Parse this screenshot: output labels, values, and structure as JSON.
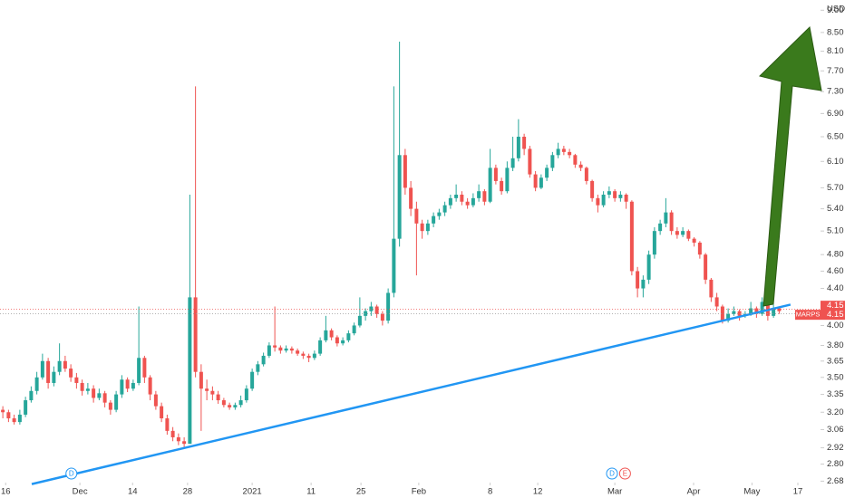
{
  "chart_data": {
    "type": "candlestick",
    "symbol": "MARPS",
    "currency": "USD",
    "log_scale": true,
    "up_color": "#26a69a",
    "down_color": "#ef5350",
    "xlim": [
      -0.5,
      144.3
    ],
    "ylim": [
      2.67,
      9.24
    ],
    "yticks": [
      {
        "value": 2.68,
        "label": "2.68"
      },
      {
        "value": 2.8,
        "label": "2.80"
      },
      {
        "value": 2.92,
        "label": "2.92"
      },
      {
        "value": 3.06,
        "label": "3.06"
      },
      {
        "value": 3.2,
        "label": "3.20"
      },
      {
        "value": 3.35,
        "label": "3.35"
      },
      {
        "value": 3.5,
        "label": "3.50"
      },
      {
        "value": 3.65,
        "label": "3.65"
      },
      {
        "value": 3.8,
        "label": "3.80"
      },
      {
        "value": 4,
        "label": "4.00"
      },
      {
        "value": 4.4,
        "label": "4.40"
      },
      {
        "value": 4.6,
        "label": "4.60"
      },
      {
        "value": 4.8,
        "label": "4.80"
      },
      {
        "value": 5.1,
        "label": "5.10"
      },
      {
        "value": 5.4,
        "label": "5.40"
      },
      {
        "value": 5.7,
        "label": "5.70"
      },
      {
        "value": 6.1,
        "label": "6.10"
      },
      {
        "value": 6.5,
        "label": "6.50"
      },
      {
        "value": 6.9,
        "label": "6.90"
      },
      {
        "value": 7.3,
        "label": "7.30"
      },
      {
        "value": 7.7,
        "label": "7.70"
      },
      {
        "value": 8.1,
        "label": "8.10"
      },
      {
        "value": 8.5,
        "label": "8.50"
      },
      {
        "value": 9,
        "label": "9.00"
      }
    ],
    "xticks": [
      {
        "value": 0.5,
        "label": "16"
      },
      {
        "value": 13.6,
        "label": "Dec"
      },
      {
        "value": 22.9,
        "label": "14"
      },
      {
        "value": 32.6,
        "label": "28"
      },
      {
        "value": 44,
        "label": "2021"
      },
      {
        "value": 54.4,
        "label": "11"
      },
      {
        "value": 63.2,
        "label": "25"
      },
      {
        "value": 73.4,
        "label": "Feb"
      },
      {
        "value": 86,
        "label": "8"
      },
      {
        "value": 94.4,
        "label": "12"
      },
      {
        "value": 108,
        "label": "Mar"
      },
      {
        "value": 121.9,
        "label": "Apr"
      },
      {
        "value": 132.2,
        "label": "May"
      },
      {
        "value": 140.3,
        "label": "17"
      }
    ],
    "last_price": {
      "value": 4.15,
      "label": "4.15"
    },
    "trendline": {
      "x": [
        5.1,
        139
      ],
      "y": [
        2.66,
        4.22
      ],
      "color": "#2196f3"
    },
    "events": [
      {
        "label": "D",
        "x": 12.1,
        "color": "#2196f3"
      },
      {
        "label": "D",
        "x": 107.5,
        "color": "#2196f3"
      },
      {
        "label": "E",
        "x": 109.8,
        "color": "#ef5350"
      }
    ],
    "ohlc": [
      [
        3.22,
        3.25,
        3.15,
        3.2
      ],
      [
        3.2,
        3.22,
        3.12,
        3.15
      ],
      [
        3.15,
        3.18,
        3.1,
        3.12
      ],
      [
        3.12,
        3.22,
        3.1,
        3.18
      ],
      [
        3.18,
        3.33,
        3.16,
        3.3
      ],
      [
        3.3,
        3.42,
        3.28,
        3.38
      ],
      [
        3.38,
        3.55,
        3.35,
        3.5
      ],
      [
        3.5,
        3.72,
        3.48,
        3.65
      ],
      [
        3.65,
        3.68,
        3.4,
        3.45
      ],
      [
        3.45,
        3.6,
        3.42,
        3.55
      ],
      [
        3.55,
        3.82,
        3.52,
        3.65
      ],
      [
        3.65,
        3.7,
        3.55,
        3.58
      ],
      [
        3.58,
        3.62,
        3.46,
        3.5
      ],
      [
        3.5,
        3.54,
        3.4,
        3.45
      ],
      [
        3.45,
        3.48,
        3.34,
        3.38
      ],
      [
        3.38,
        3.45,
        3.35,
        3.4
      ],
      [
        3.4,
        3.43,
        3.28,
        3.32
      ],
      [
        3.32,
        3.4,
        3.3,
        3.36
      ],
      [
        3.36,
        3.38,
        3.24,
        3.28
      ],
      [
        3.28,
        3.3,
        3.18,
        3.22
      ],
      [
        3.22,
        3.38,
        3.2,
        3.35
      ],
      [
        3.35,
        3.52,
        3.32,
        3.48
      ],
      [
        3.48,
        3.5,
        3.37,
        3.4
      ],
      [
        3.4,
        3.48,
        3.38,
        3.45
      ],
      [
        3.45,
        4.2,
        3.43,
        3.68
      ],
      [
        3.68,
        3.7,
        3.45,
        3.5
      ],
      [
        3.5,
        3.52,
        3.3,
        3.35
      ],
      [
        3.35,
        3.38,
        3.22,
        3.25
      ],
      [
        3.25,
        3.28,
        3.12,
        3.15
      ],
      [
        3.15,
        3.18,
        3.02,
        3.05
      ],
      [
        3.05,
        3.08,
        2.97,
        3
      ],
      [
        3,
        3.03,
        2.94,
        2.97
      ],
      [
        2.97,
        3,
        2.92,
        2.95
      ],
      [
        2.95,
        5.6,
        2.95,
        4.3
      ],
      [
        4.3,
        7.4,
        3.5,
        3.55
      ],
      [
        3.55,
        3.62,
        3.05,
        3.4
      ],
      [
        3.4,
        3.48,
        3.3,
        3.38
      ],
      [
        3.38,
        3.42,
        3.3,
        3.35
      ],
      [
        3.35,
        3.38,
        3.27,
        3.3
      ],
      [
        3.3,
        3.32,
        3.24,
        3.26
      ],
      [
        3.26,
        3.28,
        3.22,
        3.24
      ],
      [
        3.24,
        3.28,
        3.22,
        3.26
      ],
      [
        3.26,
        3.34,
        3.24,
        3.3
      ],
      [
        3.3,
        3.43,
        3.28,
        3.4
      ],
      [
        3.4,
        3.58,
        3.38,
        3.55
      ],
      [
        3.55,
        3.65,
        3.52,
        3.62
      ],
      [
        3.62,
        3.73,
        3.6,
        3.7
      ],
      [
        3.7,
        3.83,
        3.68,
        3.8
      ],
      [
        3.8,
        4.2,
        3.74,
        3.78
      ],
      [
        3.78,
        3.8,
        3.72,
        3.75
      ],
      [
        3.75,
        3.8,
        3.73,
        3.77
      ],
      [
        3.77,
        3.79,
        3.72,
        3.75
      ],
      [
        3.75,
        3.77,
        3.7,
        3.72
      ],
      [
        3.72,
        3.74,
        3.67,
        3.7
      ],
      [
        3.7,
        3.72,
        3.64,
        3.68
      ],
      [
        3.68,
        3.75,
        3.66,
        3.72
      ],
      [
        3.72,
        3.88,
        3.7,
        3.85
      ],
      [
        3.85,
        4.1,
        3.83,
        3.95
      ],
      [
        3.95,
        3.97,
        3.85,
        3.88
      ],
      [
        3.88,
        3.9,
        3.79,
        3.82
      ],
      [
        3.82,
        3.88,
        3.8,
        3.85
      ],
      [
        3.85,
        3.95,
        3.83,
        3.92
      ],
      [
        3.92,
        4.03,
        3.9,
        4
      ],
      [
        4,
        4.3,
        3.98,
        4.1
      ],
      [
        4.1,
        4.18,
        4.05,
        4.15
      ],
      [
        4.15,
        4.25,
        4.1,
        4.2
      ],
      [
        4.2,
        4.22,
        4.08,
        4.12
      ],
      [
        4.12,
        4.15,
        4,
        4.05
      ],
      [
        4.05,
        4.4,
        4.02,
        4.35
      ],
      [
        4.35,
        7.4,
        4.3,
        5
      ],
      [
        5,
        8.3,
        4.9,
        6.2
      ],
      [
        6.2,
        6.3,
        5.6,
        5.7
      ],
      [
        5.7,
        5.8,
        5.3,
        5.4
      ],
      [
        5.4,
        5.5,
        4.55,
        5.2
      ],
      [
        5.2,
        5.25,
        5,
        5.1
      ],
      [
        5.1,
        5.25,
        5.05,
        5.2
      ],
      [
        5.2,
        5.35,
        5.15,
        5.3
      ],
      [
        5.3,
        5.4,
        5.25,
        5.35
      ],
      [
        5.35,
        5.5,
        5.3,
        5.45
      ],
      [
        5.45,
        5.6,
        5.4,
        5.55
      ],
      [
        5.55,
        5.75,
        5.5,
        5.6
      ],
      [
        5.6,
        5.65,
        5.45,
        5.5
      ],
      [
        5.5,
        5.55,
        5.4,
        5.45
      ],
      [
        5.45,
        5.62,
        5.42,
        5.55
      ],
      [
        5.55,
        5.75,
        5.5,
        5.65
      ],
      [
        5.65,
        5.68,
        5.45,
        5.5
      ],
      [
        5.5,
        6.3,
        5.48,
        6
      ],
      [
        6,
        6.05,
        5.75,
        5.8
      ],
      [
        5.8,
        5.85,
        5.6,
        5.65
      ],
      [
        5.65,
        6.1,
        5.62,
        6
      ],
      [
        6,
        6.5,
        5.95,
        6.15
      ],
      [
        6.15,
        6.8,
        6.1,
        6.5
      ],
      [
        6.5,
        6.55,
        6.2,
        6.3
      ],
      [
        6.3,
        6.35,
        5.85,
        5.9
      ],
      [
        5.9,
        5.95,
        5.65,
        5.7
      ],
      [
        5.7,
        5.9,
        5.68,
        5.85
      ],
      [
        5.85,
        6.05,
        5.8,
        6
      ],
      [
        6,
        6.25,
        5.95,
        6.2
      ],
      [
        6.2,
        6.4,
        6.15,
        6.3
      ],
      [
        6.3,
        6.35,
        6.2,
        6.25
      ],
      [
        6.25,
        6.3,
        6.15,
        6.2
      ],
      [
        6.2,
        6.22,
        6,
        6.05
      ],
      [
        6.05,
        6.1,
        5.95,
        6
      ],
      [
        6,
        6.02,
        5.75,
        5.8
      ],
      [
        5.8,
        5.82,
        5.5,
        5.55
      ],
      [
        5.55,
        5.6,
        5.35,
        5.45
      ],
      [
        5.45,
        5.65,
        5.42,
        5.6
      ],
      [
        5.6,
        5.72,
        5.55,
        5.65
      ],
      [
        5.65,
        5.68,
        5.5,
        5.55
      ],
      [
        5.55,
        5.65,
        5.5,
        5.6
      ],
      [
        5.6,
        5.62,
        5.4,
        5.5
      ],
      [
        5.5,
        5.52,
        4.55,
        4.6
      ],
      [
        4.6,
        4.65,
        4.3,
        4.4
      ],
      [
        4.4,
        4.55,
        4.3,
        4.5
      ],
      [
        4.5,
        4.85,
        4.45,
        4.8
      ],
      [
        4.8,
        5.15,
        4.75,
        5.1
      ],
      [
        5.1,
        5.25,
        5.05,
        5.2
      ],
      [
        5.2,
        5.55,
        5.15,
        5.35
      ],
      [
        5.35,
        5.38,
        5.05,
        5.1
      ],
      [
        5.1,
        5.15,
        5,
        5.05
      ],
      [
        5.05,
        5.15,
        5.02,
        5.1
      ],
      [
        5.1,
        5.12,
        4.97,
        5
      ],
      [
        5,
        5.02,
        4.9,
        4.95
      ],
      [
        4.95,
        4.97,
        4.75,
        4.8
      ],
      [
        4.8,
        4.82,
        4.45,
        4.5
      ],
      [
        4.5,
        4.52,
        4.25,
        4.3
      ],
      [
        4.3,
        4.35,
        4.15,
        4.2
      ],
      [
        4.2,
        4.22,
        4.02,
        4.05
      ],
      [
        4.05,
        4.18,
        4.03,
        4.12
      ],
      [
        4.12,
        4.2,
        4.1,
        4.15
      ],
      [
        4.15,
        4.17,
        4.05,
        4.1
      ],
      [
        4.1,
        4.15,
        4.08,
        4.12
      ],
      [
        4.12,
        4.25,
        4.1,
        4.18
      ],
      [
        4.18,
        4.2,
        4.08,
        4.12
      ],
      [
        4.12,
        4.3,
        4.1,
        4.25
      ],
      [
        4.25,
        4.27,
        4.05,
        4.1
      ],
      [
        4.1,
        4.22,
        4.08,
        4.18
      ],
      [
        4.18,
        4.2,
        4.12,
        4.15
      ]
    ]
  }
}
